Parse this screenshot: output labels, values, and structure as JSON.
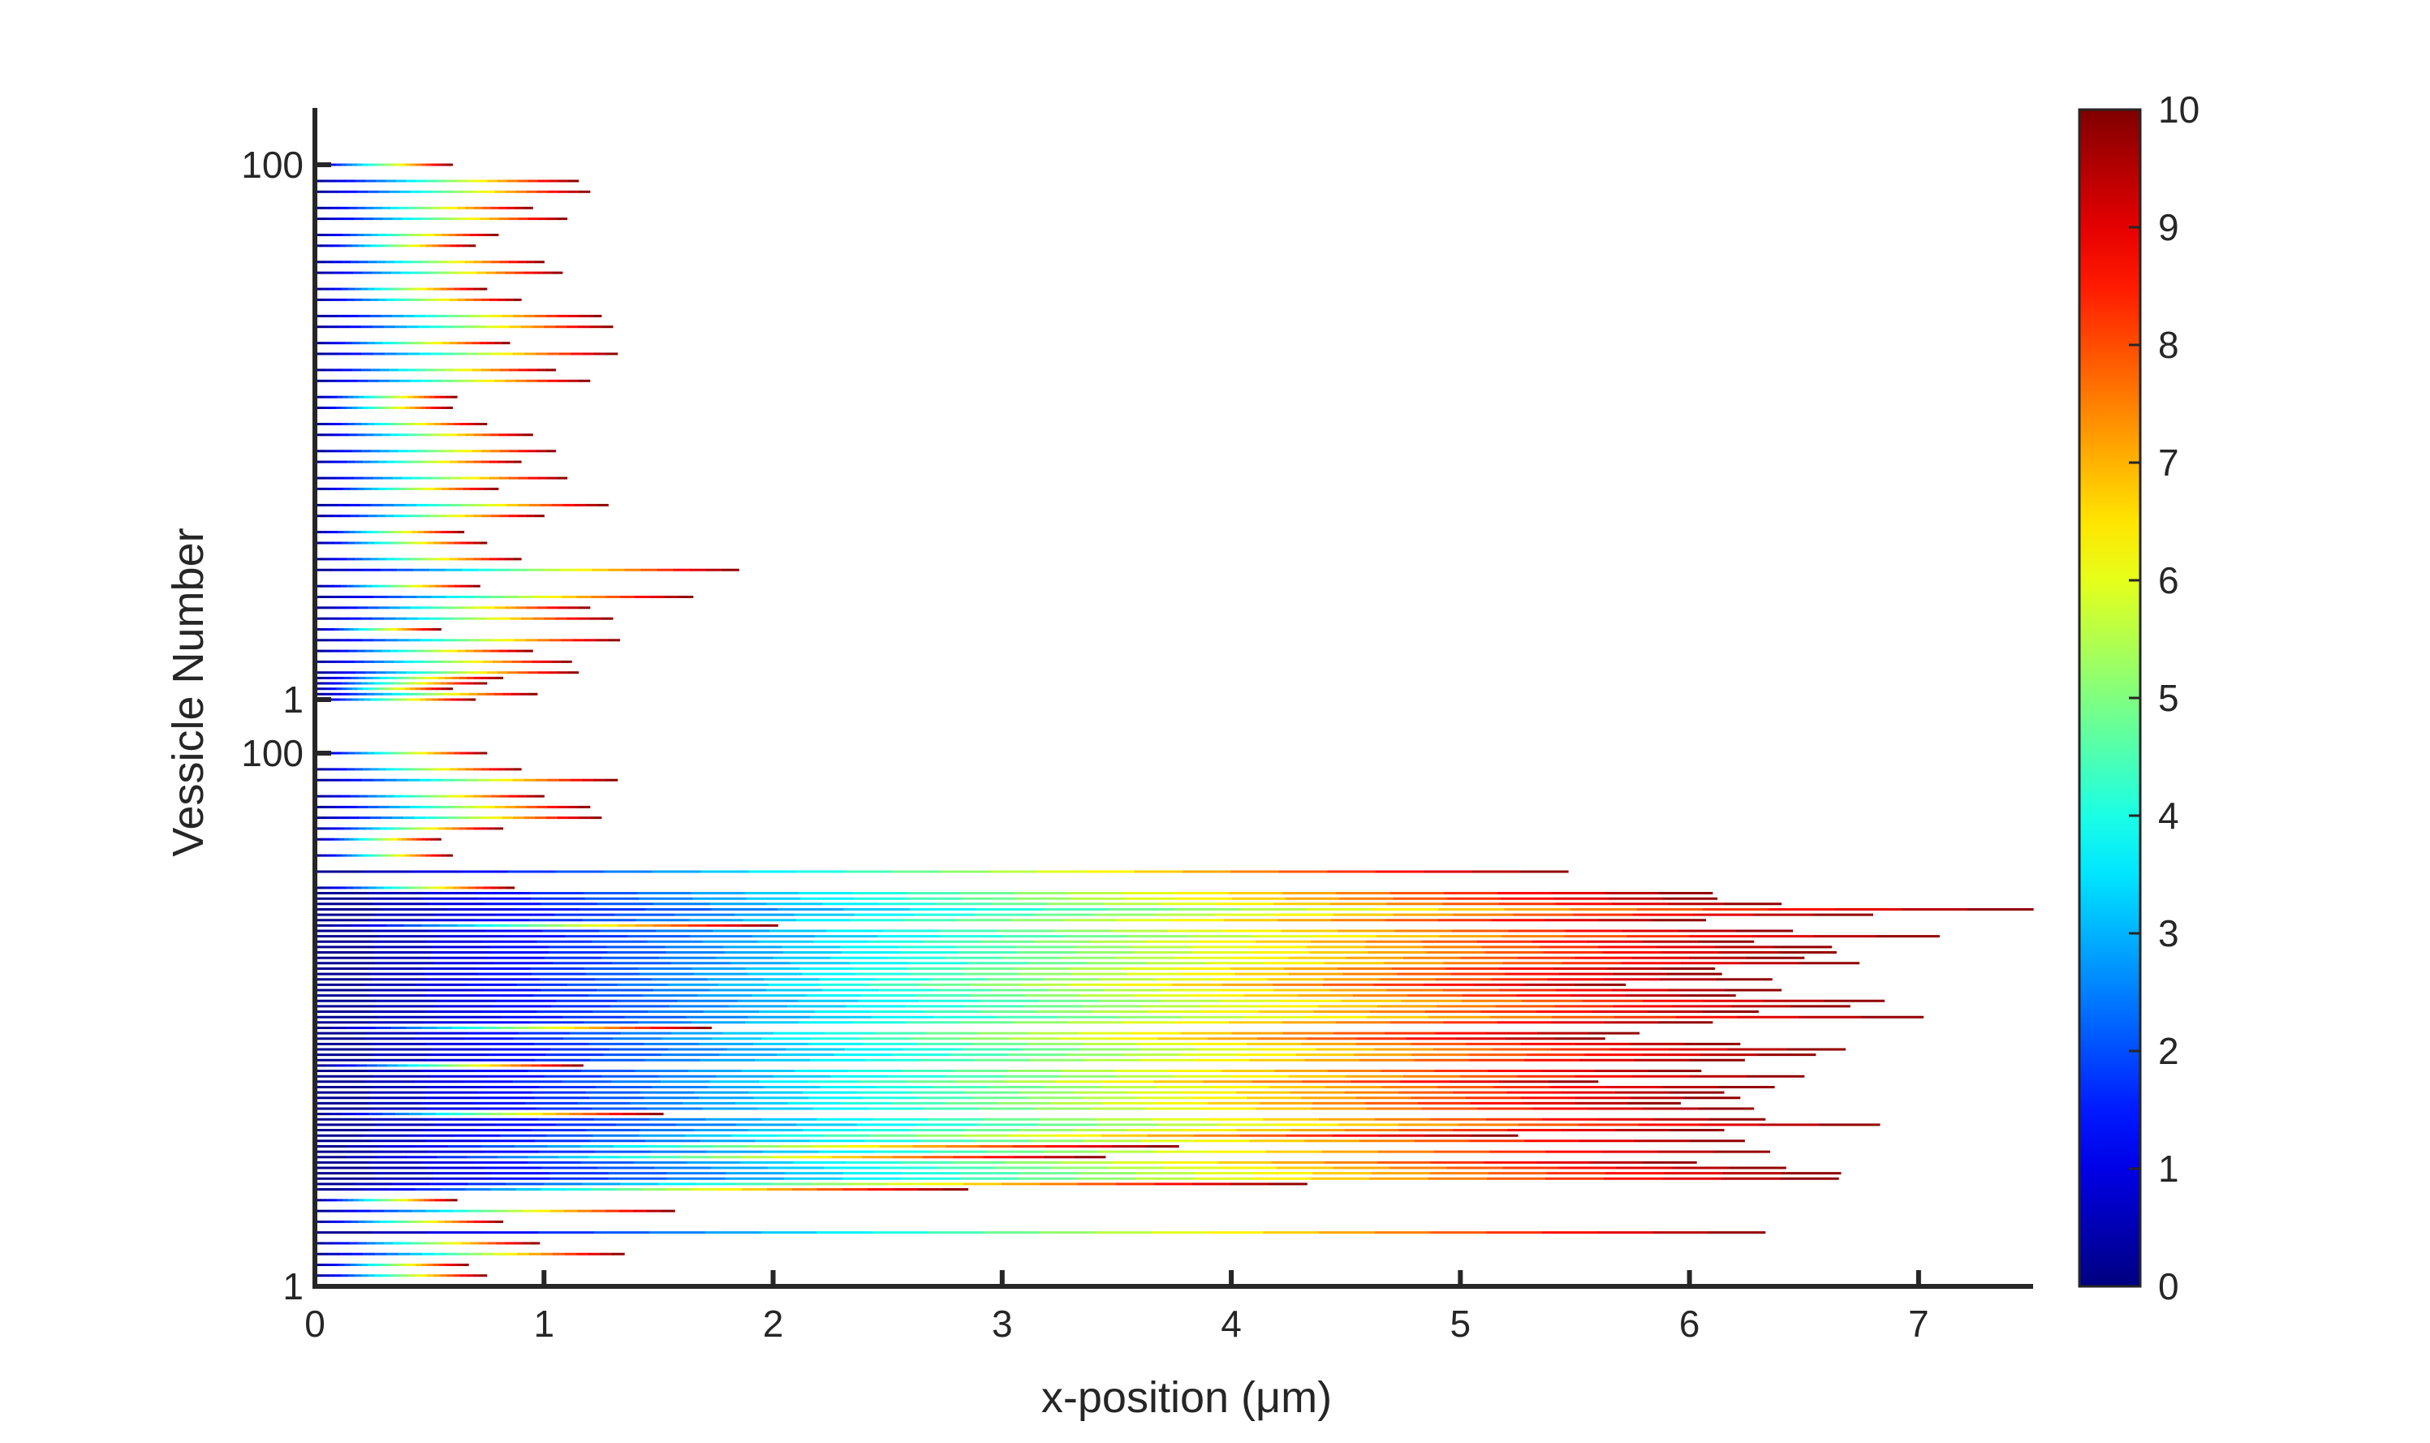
{
  "chart_data": {
    "type": "line",
    "xlabel": "x-position (μm)",
    "ylabel": "Vessicle Number",
    "xlim": [
      0,
      7.5
    ],
    "x_ticks": [
      "0",
      "1",
      "2",
      "3",
      "4",
      "5",
      "6",
      "7"
    ],
    "y_ticks_upper": [
      "100",
      "1"
    ],
    "y_ticks_lower": [
      "100",
      "1"
    ],
    "colorbar": {
      "colormap": "jet",
      "range": [
        0,
        10
      ],
      "ticks": [
        "0",
        "1",
        "2",
        "3",
        "4",
        "5",
        "6",
        "7",
        "8",
        "9",
        "10"
      ]
    },
    "panels": [
      {
        "name": "upper",
        "y_range": [
          1,
          100
        ],
        "lines": [
          {
            "y": 100,
            "x_end": 0.6
          },
          {
            "y": 97,
            "x_end": 1.15
          },
          {
            "y": 95,
            "x_end": 1.2
          },
          {
            "y": 92,
            "x_end": 0.95
          },
          {
            "y": 90,
            "x_end": 1.1
          },
          {
            "y": 87,
            "x_end": 0.8
          },
          {
            "y": 85,
            "x_end": 0.7
          },
          {
            "y": 82,
            "x_end": 1.0
          },
          {
            "y": 80,
            "x_end": 1.08
          },
          {
            "y": 77,
            "x_end": 0.75
          },
          {
            "y": 75,
            "x_end": 0.9
          },
          {
            "y": 72,
            "x_end": 1.25
          },
          {
            "y": 70,
            "x_end": 1.3
          },
          {
            "y": 67,
            "x_end": 0.85
          },
          {
            "y": 65,
            "x_end": 1.32
          },
          {
            "y": 62,
            "x_end": 1.05
          },
          {
            "y": 60,
            "x_end": 1.2
          },
          {
            "y": 57,
            "x_end": 0.62
          },
          {
            "y": 55,
            "x_end": 0.6
          },
          {
            "y": 52,
            "x_end": 0.75
          },
          {
            "y": 50,
            "x_end": 0.95
          },
          {
            "y": 47,
            "x_end": 1.05
          },
          {
            "y": 45,
            "x_end": 0.9
          },
          {
            "y": 42,
            "x_end": 1.1
          },
          {
            "y": 40,
            "x_end": 0.8
          },
          {
            "y": 37,
            "x_end": 1.28
          },
          {
            "y": 35,
            "x_end": 1.0
          },
          {
            "y": 32,
            "x_end": 0.65
          },
          {
            "y": 30,
            "x_end": 0.75
          },
          {
            "y": 27,
            "x_end": 0.9
          },
          {
            "y": 25,
            "x_end": 1.85
          },
          {
            "y": 22,
            "x_end": 0.72
          },
          {
            "y": 20,
            "x_end": 1.65
          },
          {
            "y": 18,
            "x_end": 1.2
          },
          {
            "y": 16,
            "x_end": 1.3
          },
          {
            "y": 14,
            "x_end": 0.55
          },
          {
            "y": 12,
            "x_end": 1.33
          },
          {
            "y": 10,
            "x_end": 0.95
          },
          {
            "y": 8,
            "x_end": 1.12
          },
          {
            "y": 6,
            "x_end": 1.15
          },
          {
            "y": 5,
            "x_end": 0.82
          },
          {
            "y": 4,
            "x_end": 0.75
          },
          {
            "y": 3,
            "x_end": 0.6
          },
          {
            "y": 2,
            "x_end": 0.97
          },
          {
            "y": 1,
            "x_end": 0.7
          }
        ]
      },
      {
        "name": "lower",
        "y_range": [
          1,
          100
        ],
        "lines": [
          {
            "y": 100,
            "x_end": 0.75
          },
          {
            "y": 97,
            "x_end": 0.9
          },
          {
            "y": 95,
            "x_end": 1.32
          },
          {
            "y": 92,
            "x_end": 1.0
          },
          {
            "y": 90,
            "x_end": 1.2
          },
          {
            "y": 88,
            "x_end": 1.25
          },
          {
            "y": 86,
            "x_end": 0.82
          },
          {
            "y": 84,
            "x_end": 0.55
          },
          {
            "y": 81,
            "x_end": 0.6
          },
          {
            "y": 78,
            "x_end": 5.47
          },
          {
            "y": 75,
            "x_end": 0.87
          },
          {
            "y": 74,
            "x_end": 6.1
          },
          {
            "y": 73,
            "x_end": 6.12
          },
          {
            "y": 72,
            "x_end": 6.4
          },
          {
            "y": 71,
            "x_end": 7.5
          },
          {
            "y": 70,
            "x_end": 6.8
          },
          {
            "y": 69,
            "x_end": 6.07
          },
          {
            "y": 68,
            "x_end": 2.02
          },
          {
            "y": 67,
            "x_end": 6.45
          },
          {
            "y": 66,
            "x_end": 7.09
          },
          {
            "y": 65,
            "x_end": 6.28
          },
          {
            "y": 64,
            "x_end": 6.62
          },
          {
            "y": 63,
            "x_end": 6.64
          },
          {
            "y": 62,
            "x_end": 6.5
          },
          {
            "y": 61,
            "x_end": 6.74
          },
          {
            "y": 60,
            "x_end": 6.11
          },
          {
            "y": 59,
            "x_end": 6.14
          },
          {
            "y": 58,
            "x_end": 6.36
          },
          {
            "y": 57,
            "x_end": 5.72
          },
          {
            "y": 56,
            "x_end": 6.4
          },
          {
            "y": 55,
            "x_end": 6.2
          },
          {
            "y": 54,
            "x_end": 6.85
          },
          {
            "y": 53,
            "x_end": 6.7
          },
          {
            "y": 52,
            "x_end": 6.3
          },
          {
            "y": 51,
            "x_end": 7.02
          },
          {
            "y": 50,
            "x_end": 6.1
          },
          {
            "y": 49,
            "x_end": 1.73
          },
          {
            "y": 48,
            "x_end": 5.78
          },
          {
            "y": 47,
            "x_end": 5.63
          },
          {
            "y": 46,
            "x_end": 6.22
          },
          {
            "y": 45,
            "x_end": 6.68
          },
          {
            "y": 44,
            "x_end": 6.55
          },
          {
            "y": 43,
            "x_end": 6.24
          },
          {
            "y": 42,
            "x_end": 1.17
          },
          {
            "y": 41,
            "x_end": 6.05
          },
          {
            "y": 40,
            "x_end": 6.5
          },
          {
            "y": 39,
            "x_end": 5.6
          },
          {
            "y": 38,
            "x_end": 6.37
          },
          {
            "y": 37,
            "x_end": 6.15
          },
          {
            "y": 36,
            "x_end": 6.22
          },
          {
            "y": 35,
            "x_end": 5.96
          },
          {
            "y": 34,
            "x_end": 6.28
          },
          {
            "y": 33,
            "x_end": 1.52
          },
          {
            "y": 32,
            "x_end": 6.33
          },
          {
            "y": 31,
            "x_end": 6.83
          },
          {
            "y": 30,
            "x_end": 6.15
          },
          {
            "y": 29,
            "x_end": 5.25
          },
          {
            "y": 28,
            "x_end": 6.24
          },
          {
            "y": 27,
            "x_end": 3.77
          },
          {
            "y": 26,
            "x_end": 6.35
          },
          {
            "y": 25,
            "x_end": 3.45
          },
          {
            "y": 24,
            "x_end": 6.03
          },
          {
            "y": 23,
            "x_end": 6.42
          },
          {
            "y": 22,
            "x_end": 6.66
          },
          {
            "y": 21,
            "x_end": 6.65
          },
          {
            "y": 20,
            "x_end": 4.33
          },
          {
            "y": 19,
            "x_end": 2.85
          },
          {
            "y": 17,
            "x_end": 0.62
          },
          {
            "y": 15,
            "x_end": 1.57
          },
          {
            "y": 13,
            "x_end": 0.82
          },
          {
            "y": 11,
            "x_end": 6.33
          },
          {
            "y": 9,
            "x_end": 0.98
          },
          {
            "y": 7,
            "x_end": 1.35
          },
          {
            "y": 5,
            "x_end": 0.67
          },
          {
            "y": 3,
            "x_end": 0.75
          },
          {
            "y": 1,
            "x_end": 1.1
          }
        ]
      }
    ]
  }
}
